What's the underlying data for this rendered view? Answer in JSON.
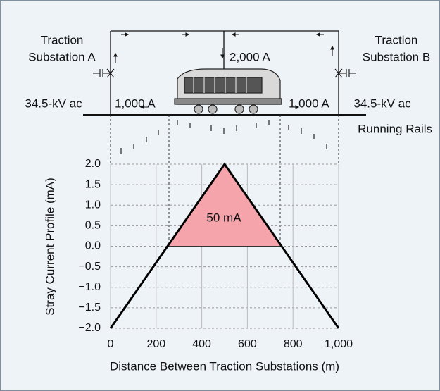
{
  "diagram": {
    "substation_a": [
      "Traction",
      "Substation A"
    ],
    "substation_b": [
      "Traction",
      "Substation B"
    ],
    "voltage_a": "34.5-kV ac",
    "voltage_b": "34.5-kV ac",
    "current_train": "2,000 A",
    "current_a": "1,000 A",
    "current_b": "1,000 A",
    "rails": "Running Rails"
  },
  "chart_data": {
    "type": "line",
    "ylabel": "Stray Current Profile (mA)",
    "xlabel": "Distance Between Traction Substations (m)",
    "x": [
      0,
      500,
      1000
    ],
    "series": [
      {
        "color": "#000000",
        "values": [
          -2,
          2,
          -2
        ]
      }
    ],
    "fill_region": {
      "x": [
        250,
        500,
        750
      ],
      "values": [
        0,
        2,
        0
      ],
      "color": "#f4a4aa"
    },
    "annotation": "50 mA",
    "xlim": [
      0,
      1000
    ],
    "ylim": [
      -2,
      2
    ],
    "xticks": [
      0,
      200,
      400,
      600,
      800,
      {
        "value": 1000,
        "label": "1,000"
      }
    ],
    "yticks": [
      {
        "value": 2,
        "label": "2.0"
      },
      {
        "value": 1.5,
        "label": "1.5"
      },
      {
        "value": 1,
        "label": "1.0"
      },
      {
        "value": 0.5,
        "label": "0.5"
      },
      {
        "value": 0,
        "label": "0.0"
      },
      {
        "value": -0.5,
        "label": "−0.5"
      },
      {
        "value": -1,
        "label": "−1.0"
      },
      {
        "value": -1.5,
        "label": "−1.5"
      },
      {
        "value": -2,
        "label": "−2.0"
      }
    ],
    "grid": true
  }
}
